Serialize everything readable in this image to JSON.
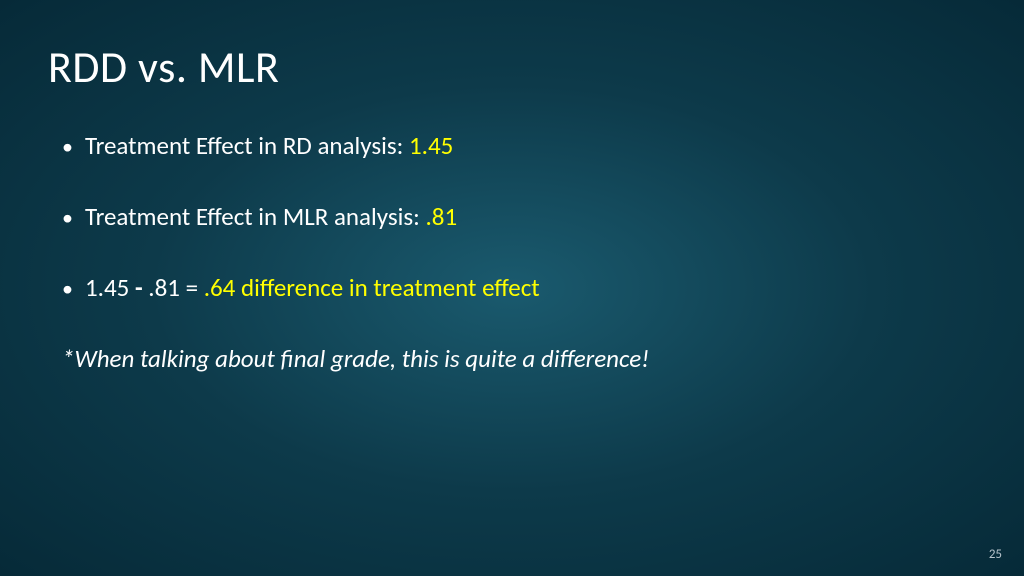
{
  "slide": {
    "title": "RDD vs. MLR",
    "bullets": [
      {
        "label": "Treatment  Effect in RD analysis: ",
        "value": "1.45"
      },
      {
        "label": "Treatment Effect in MLR analysis: ",
        "value": ".81"
      }
    ],
    "calc": {
      "lhs1": "1.45",
      "dash": " - ",
      "lhs2": ".81 = ",
      "result": ".64 difference in treatment effect"
    },
    "note": "*When talking about final grade, this is quite a difference!",
    "page_number": "25"
  },
  "colors": {
    "accent": "#ffff00",
    "text": "#ffffff",
    "bg_inner": "#1a5a6e",
    "bg_outer": "#062a38"
  }
}
